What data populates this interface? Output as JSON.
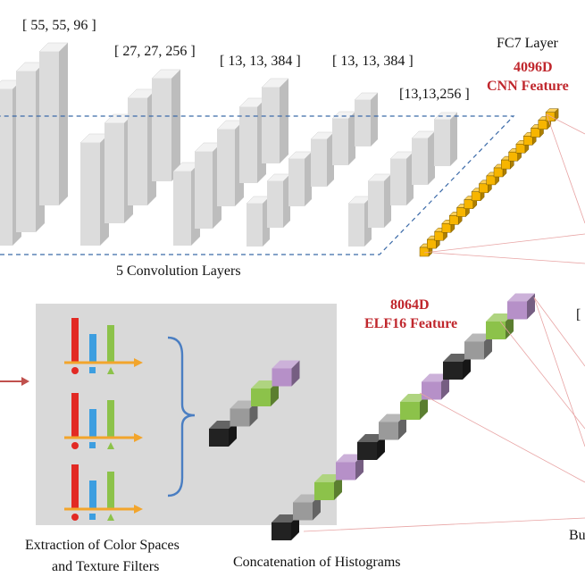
{
  "top": {
    "dims": [
      "[ 55, 55, 96 ]",
      "[ 27, 27, 256 ]",
      "[ 13, 13, 384 ]",
      "[ 13, 13, 384 ]",
      "[13,13,256 ]"
    ],
    "conv_caption": "5 Convolution Layers",
    "fc_layer": "FC7 Layer",
    "fc_dim": "4096D",
    "fc_feature": "CNN Feature",
    "fc_right_partial": ""
  },
  "bottom": {
    "elf_dim": "8064D",
    "elf_feature": "ELF16 Feature",
    "extraction_line1": "Extraction of Color Spaces",
    "extraction_line2": "and Texture Filters",
    "concat_caption": "Concatenation of Histograms",
    "right_bracket_partial": "[",
    "right_partial_text": "Bu"
  },
  "colors": {
    "red": "#e22a24",
    "blue": "#3d9ee0",
    "green": "#8cc24a",
    "orange": "#f2a52c",
    "purple": "#b690c8",
    "gray": "#9a9a9a",
    "black": "#222222",
    "fc_cube": "#f7b500",
    "accent_red": "#c0272d"
  }
}
